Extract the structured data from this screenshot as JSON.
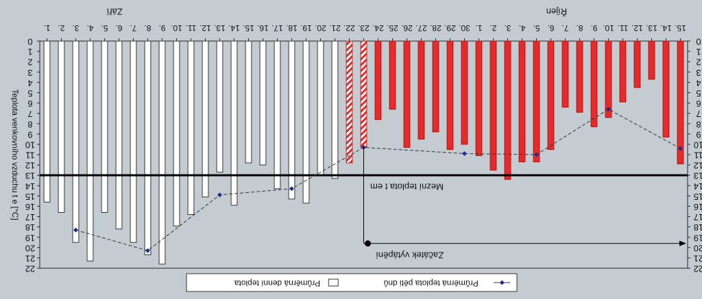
{
  "chart_data": {
    "type": "bar",
    "orientation": "mirrored",
    "ylabel": "Teplota venkovního vzduchu t e [°C]",
    "ylim": [
      0,
      22
    ],
    "y_ticks": [
      0,
      1,
      2,
      3,
      4,
      5,
      6,
      7,
      8,
      9,
      10,
      11,
      12,
      13,
      14,
      15,
      16,
      17,
      18,
      19,
      20,
      21,
      22
    ],
    "month_labels": [
      {
        "text": "Září",
        "at_category": "6."
      },
      {
        "text": "Říjen",
        "at_category": "9."
      }
    ],
    "categories": [
      "1.",
      "2.",
      "3.",
      "4.",
      "5.",
      "6.",
      "7.",
      "8.",
      "9.",
      "10.",
      "11.",
      "12.",
      "13.",
      "14.",
      "15.",
      "16.",
      "17.",
      "18.",
      "19.",
      "20.",
      "21.",
      "22.",
      "23.",
      "24.",
      "25.",
      "26.",
      "27.",
      "28.",
      "29.",
      "30.",
      "1.",
      "2.",
      "3.",
      "4.",
      "5.",
      "6.",
      "7.",
      "8.",
      "9.",
      "10.",
      "11.",
      "12.",
      "13.",
      "14.",
      "15."
    ],
    "series": [
      {
        "name": "Průměrná denní teplota",
        "values": [
          15.6,
          16.6,
          19.5,
          21.3,
          16.6,
          18.2,
          19.5,
          20.7,
          21.6,
          17.9,
          16.8,
          15.1,
          12.7,
          15.9,
          11.8,
          12.0,
          14.3,
          15.3,
          15.7,
          13.0,
          13.3,
          11.8,
          10.3,
          7.6,
          6.6,
          10.3,
          9.5,
          8.8,
          10.5,
          10.0,
          11.1,
          12.5,
          13.4,
          11.7,
          11.7,
          10.5,
          6.4,
          6.9,
          8.3,
          7.4,
          5.9,
          4.5,
          3.7,
          9.3,
          11.9
        ],
        "colors": [
          "#ffffff",
          "#ffffff",
          "#ffffff",
          "#ffffff",
          "#ffffff",
          "#ffffff",
          "#ffffff",
          "#ffffff",
          "#ffffff",
          "#ffffff",
          "#ffffff",
          "#ffffff",
          "#ffffff",
          "#ffffff",
          "#ffffff",
          "#ffffff",
          "#ffffff",
          "#ffffff",
          "#ffffff",
          "#ffffff",
          "#ffffff",
          "#hatched",
          "#hatched",
          "#e52b2b",
          "#e52b2b",
          "#e52b2b",
          "#e52b2b",
          "#e52b2b",
          "#e52b2b",
          "#e52b2b",
          "#e52b2b",
          "#e52b2b",
          "#e52b2b",
          "#e52b2b",
          "#e52b2b",
          "#e52b2b",
          "#e52b2b",
          "#e52b2b",
          "#e52b2b",
          "#e52b2b",
          "#e52b2b",
          "#e52b2b",
          "#e52b2b",
          "#e52b2b",
          "#e52b2b"
        ]
      },
      {
        "name": "Průměrná teplota pěti dnů",
        "type": "line",
        "points": [
          {
            "category_index": 2,
            "value": 18.3
          },
          {
            "category_index": 7,
            "value": 20.3
          },
          {
            "category_index": 12,
            "value": 14.9
          },
          {
            "category_index": 17,
            "value": 14.3
          },
          {
            "category_index": 22,
            "value": 10.3
          },
          {
            "category_index": 29,
            "value": 10.9
          },
          {
            "category_index": 34,
            "value": 11.0
          },
          {
            "category_index": 39,
            "value": 6.6
          },
          {
            "category_index": 44,
            "value": 10.4
          }
        ]
      }
    ],
    "threshold": {
      "value": 13,
      "label": "Mezní teplota t em"
    },
    "annotation": {
      "text": "Začátek vytápění",
      "start_category_index": 22,
      "y_value": 19.6
    },
    "legend": {
      "position": "bottom",
      "entries": [
        "Průměrná denní teplota",
        "Průměrná teplota pěti dnů"
      ]
    },
    "colors": {
      "heated": "#e52b2b",
      "transition_hatch": "#e52b2b",
      "unheated": "#ffffff",
      "line": "#333333",
      "marker": "#1e2f8c"
    }
  }
}
